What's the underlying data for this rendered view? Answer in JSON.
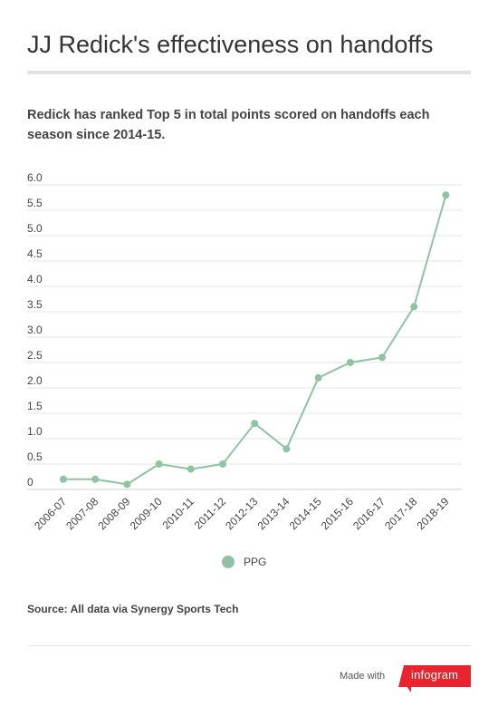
{
  "header": {
    "title": "JJ Redick's effectiveness on handoffs",
    "subtitle": "Redick has ranked Top 5 in total points scored on handoffs each season since 2014-15."
  },
  "chart_data": {
    "type": "line",
    "categories": [
      "2006-07",
      "2007-08",
      "2008-09",
      "2009-10",
      "2010-11",
      "2011-12",
      "2012-13",
      "2013-14",
      "2014-15",
      "2015-16",
      "2016-17",
      "2017-18",
      "2018-19"
    ],
    "series": [
      {
        "name": "PPG",
        "values": [
          0.2,
          0.2,
          0.1,
          0.5,
          0.4,
          0.5,
          1.3,
          0.8,
          2.2,
          2.5,
          2.6,
          3.6,
          5.8
        ]
      }
    ],
    "ylim": [
      0,
      6.0
    ],
    "yticks": [
      "0",
      "0.5",
      "1.0",
      "1.5",
      "2.0",
      "2.5",
      "3.0",
      "3.5",
      "4.0",
      "4.5",
      "5.0",
      "5.5",
      "6.0"
    ],
    "grid": true,
    "legend_position": "bottom",
    "color": "#8fc4a3"
  },
  "legend": {
    "label": "PPG"
  },
  "footer": {
    "source": "Source: All data via Synergy Sports Tech",
    "made_with": "Made with",
    "brand": "infogram"
  }
}
